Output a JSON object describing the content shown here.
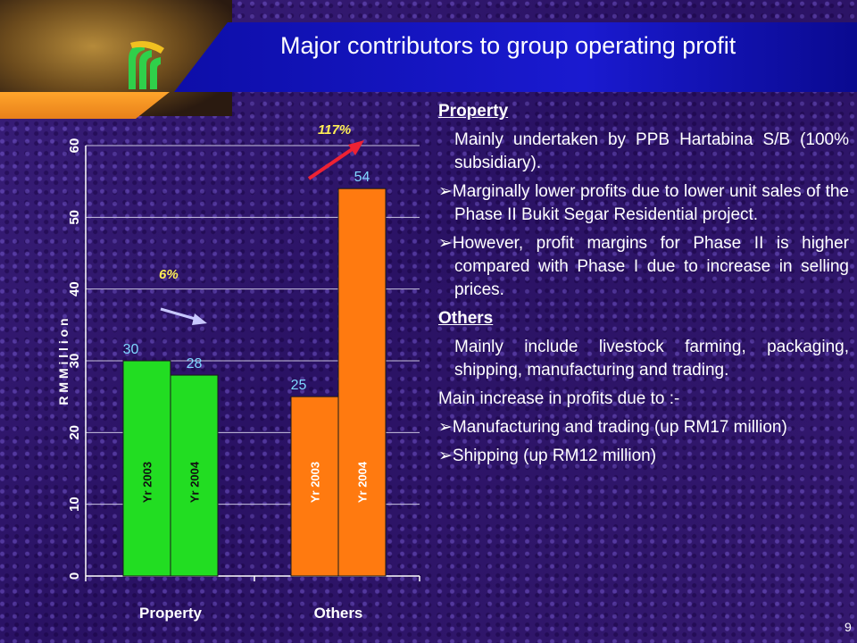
{
  "slide": {
    "title": "Major contributors to group operating profit",
    "page_number": "9"
  },
  "text": {
    "property_heading": "Property",
    "property_intro": "Mainly undertaken by PPB Hartabina S/B (100% subsidiary).",
    "property_bullet1": "Marginally lower profits due to lower unit sales of the Phase II Bukit Segar Residential project.",
    "property_bullet2": "However, profit margins for Phase II is higher compared with Phase I due to increase in selling prices.",
    "others_heading": "Others",
    "others_intro": "Mainly include livestock farming, packaging, shipping, manufacturing and trading.",
    "others_main": "Main increase in profits due to :-",
    "others_bullet1": "Manufacturing and trading (up RM17 million)",
    "others_bullet2": "Shipping (up RM12 million)"
  },
  "colors": {
    "property_bar": "#22dd22",
    "others_bar": "#ff7a10",
    "value_label": "#7fd8ff",
    "annotation": "#ffee55"
  },
  "chart_data": {
    "type": "bar",
    "categories": [
      "Property",
      "Others"
    ],
    "series": [
      {
        "name": "Yr 2003",
        "values": [
          30,
          25
        ]
      },
      {
        "name": "Yr 2004",
        "values": [
          28,
          54
        ]
      }
    ],
    "value_labels": [
      "30",
      "28",
      "25",
      "54"
    ],
    "ylabel": "R M  M i l l i o n",
    "ylim": [
      0,
      60
    ],
    "yticks": [
      0,
      10,
      20,
      30,
      40,
      50,
      60
    ],
    "grid": true,
    "annotations": [
      {
        "category": "Property",
        "text": "6%",
        "trend": "down"
      },
      {
        "category": "Others",
        "text": "117%",
        "trend": "up"
      }
    ]
  }
}
